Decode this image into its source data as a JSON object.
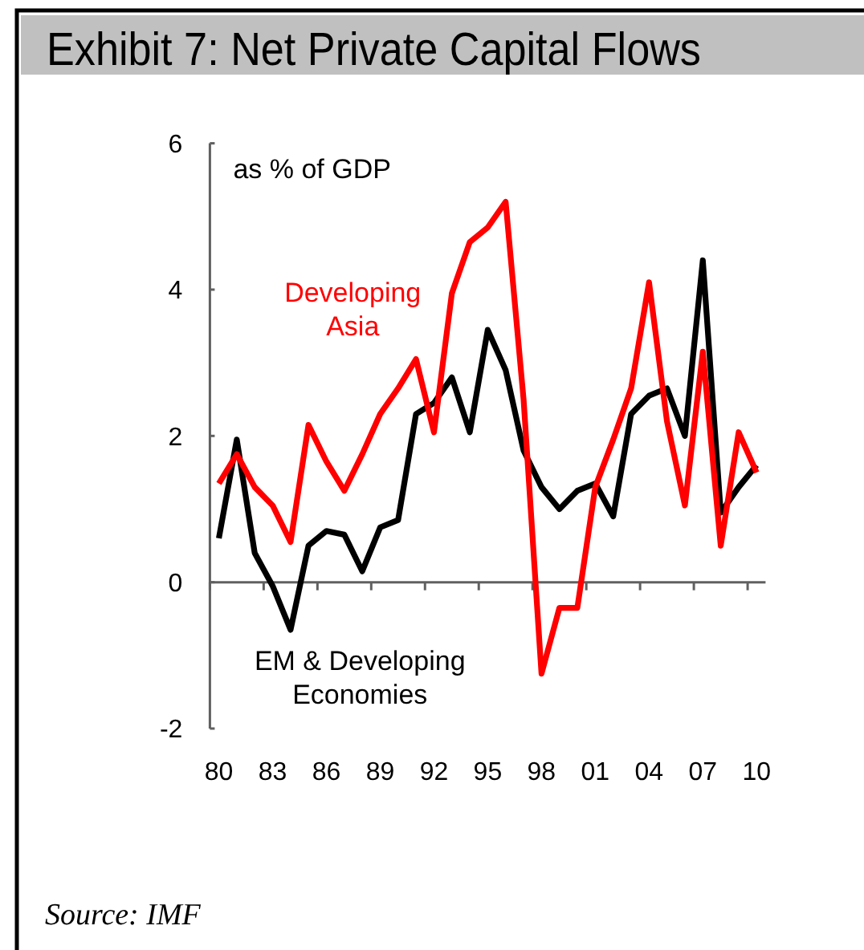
{
  "chart_data": {
    "type": "line",
    "title": "Exhibit 7: Net Private Capital Flows",
    "ylabel": "as % of GDP",
    "categories": [
      "80",
      null,
      null,
      "83",
      null,
      null,
      "86",
      null,
      null,
      "89",
      null,
      null,
      "92",
      null,
      null,
      "95",
      null,
      null,
      "98",
      null,
      null,
      "01",
      null,
      null,
      "04",
      null,
      null,
      "07",
      null,
      null,
      "10"
    ],
    "series": [
      {
        "name": "EM & Developing Economies",
        "color": "#000000",
        "values": [
          0.6,
          1.95,
          0.4,
          -0.05,
          -0.65,
          0.5,
          0.7,
          0.65,
          0.15,
          0.75,
          0.85,
          2.3,
          2.45,
          2.8,
          2.05,
          3.45,
          2.9,
          1.8,
          1.3,
          1.0,
          1.25,
          1.35,
          0.9,
          2.3,
          2.55,
          2.65,
          2.0,
          4.4,
          0.95,
          1.3,
          1.6
        ]
      },
      {
        "name": "Developing Asia",
        "color": "#ff0000",
        "values": [
          1.35,
          1.75,
          1.3,
          1.05,
          0.55,
          2.15,
          1.65,
          1.25,
          1.75,
          2.3,
          2.65,
          3.05,
          2.05,
          3.95,
          4.65,
          4.85,
          5.2,
          2.5,
          -1.25,
          -0.35,
          -0.35,
          1.3,
          1.95,
          2.65,
          4.1,
          2.2,
          1.05,
          3.15,
          0.5,
          2.05,
          1.5
        ]
      }
    ],
    "ylim": [
      -2,
      6
    ],
    "yticks": [
      -2,
      0,
      2,
      4,
      6
    ],
    "line_style": "solid",
    "annotations": [
      "Source: IMF"
    ]
  }
}
